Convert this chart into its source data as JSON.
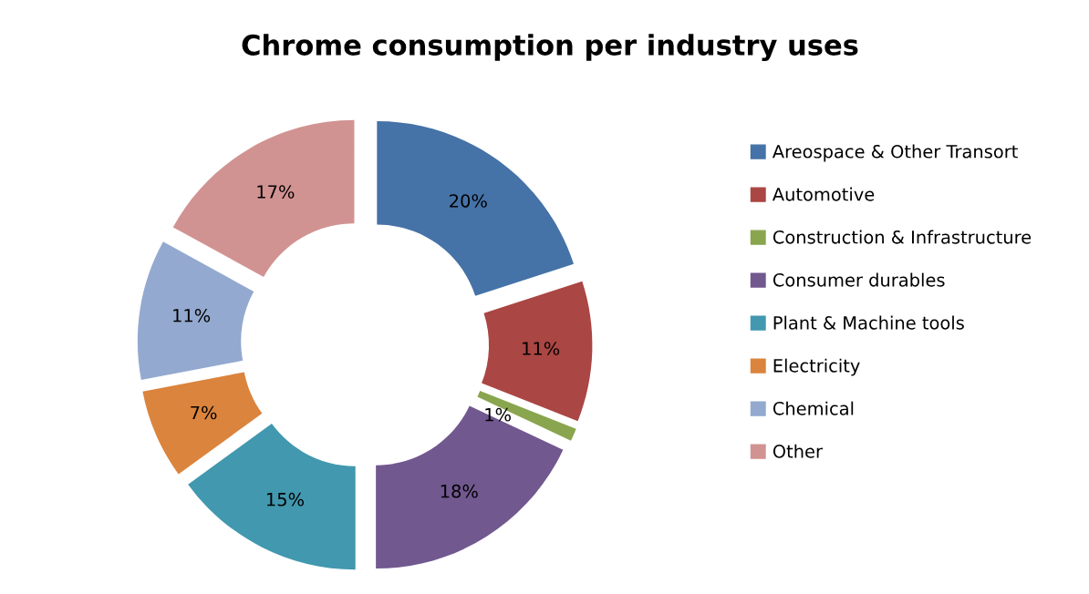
{
  "chart_data": {
    "type": "donut",
    "title": "Chrome consumption per industry uses",
    "categories": [
      "Areospace & Other Transort",
      "Automotive",
      "Construction & Infrastructure",
      "Consumer durables",
      "Plant & Machine tools",
      "Electricity",
      "Chemical",
      "Other"
    ],
    "values": [
      20,
      11,
      1,
      18,
      15,
      7,
      11,
      17
    ],
    "colors": [
      "#4572a7",
      "#aa4643",
      "#89a54e",
      "#71588f",
      "#4198af",
      "#db843d",
      "#93a9cf",
      "#d19392"
    ],
    "value_labels": [
      "20%",
      "11%",
      "1%",
      "18%",
      "15%",
      "7%",
      "11%",
      "17%"
    ],
    "legend": "right"
  }
}
